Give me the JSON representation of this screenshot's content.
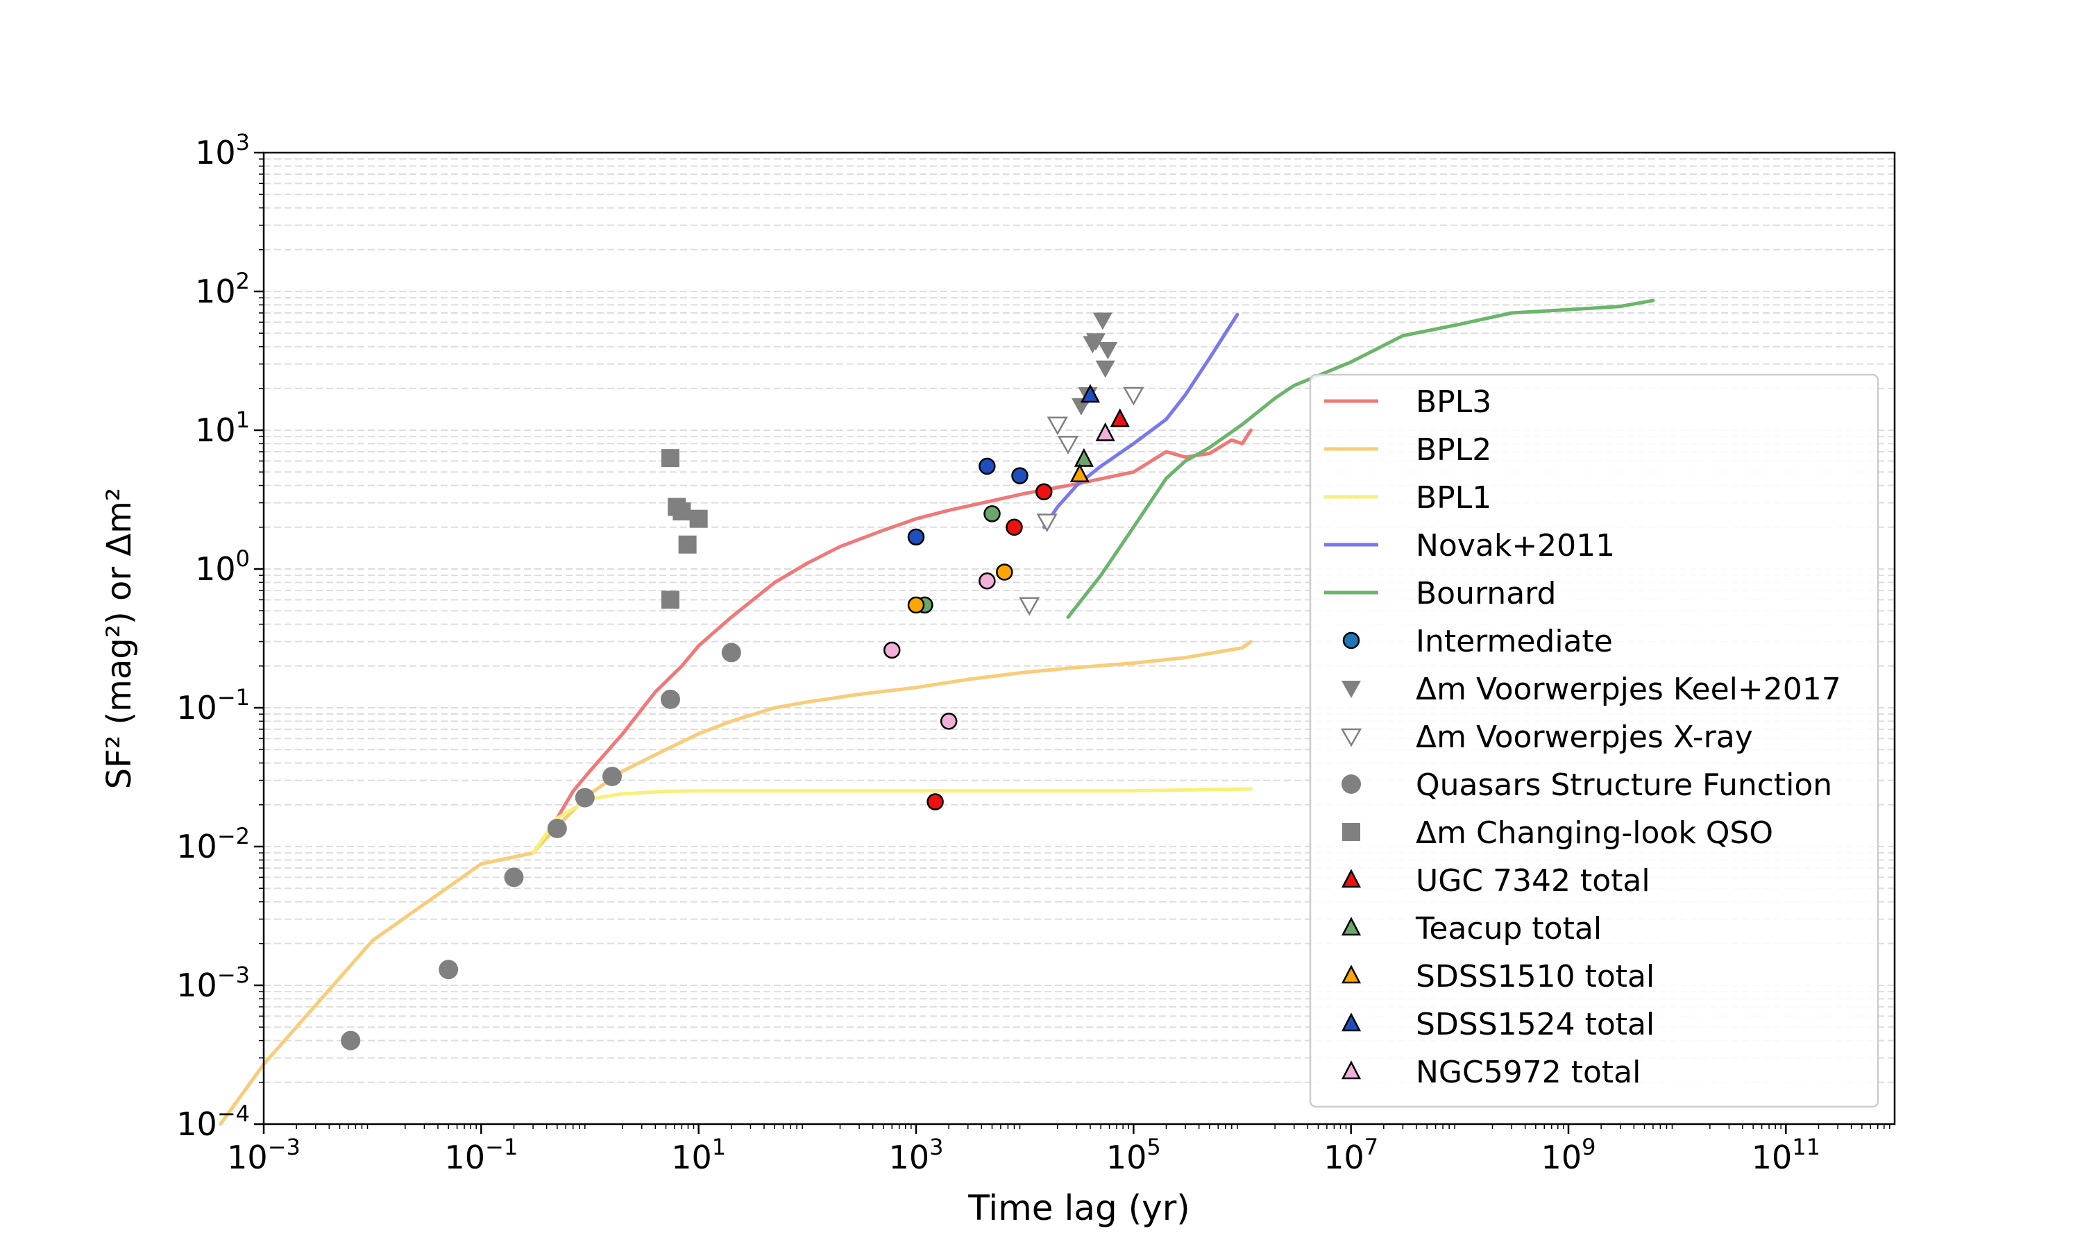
{
  "chart_data": {
    "type": "scatter",
    "xlabel": "Time lag (yr)",
    "ylabel": "SF² (mag²) or Δm²",
    "xscale": "log",
    "yscale": "log",
    "xlim": [
      0.001,
      1000000000000.0
    ],
    "ylim": [
      0.0001,
      1000
    ],
    "grid": "y-minor dashed",
    "x_ticks": [
      {
        "value": 0.001,
        "base": "10",
        "exp": "−3"
      },
      {
        "value": 0.1,
        "base": "10",
        "exp": "−1"
      },
      {
        "value": 10,
        "base": "10",
        "exp": "1"
      },
      {
        "value": 1000,
        "base": "10",
        "exp": "3"
      },
      {
        "value": 100000,
        "base": "10",
        "exp": "5"
      },
      {
        "value": 10000000,
        "base": "10",
        "exp": "7"
      },
      {
        "value": 1000000000,
        "base": "10",
        "exp": "9"
      },
      {
        "value": 100000000000,
        "base": "10",
        "exp": "11"
      }
    ],
    "y_ticks": [
      {
        "value": 0.0001,
        "base": "10",
        "exp": "−4"
      },
      {
        "value": 0.001,
        "base": "10",
        "exp": "−3"
      },
      {
        "value": 0.01,
        "base": "10",
        "exp": "−2"
      },
      {
        "value": 0.1,
        "base": "10",
        "exp": "−1"
      },
      {
        "value": 1,
        "base": "10",
        "exp": "0"
      },
      {
        "value": 10,
        "base": "10",
        "exp": "1"
      },
      {
        "value": 100,
        "base": "10",
        "exp": "2"
      },
      {
        "value": 1000,
        "base": "10",
        "exp": "3"
      }
    ],
    "legend_position": "right, upper-middle",
    "lines": [
      {
        "name": "BPL3",
        "color": "#f07878",
        "points": [
          [
            0.3,
            0.009
          ],
          [
            0.4,
            0.012
          ],
          [
            0.5,
            0.016
          ],
          [
            0.7,
            0.025
          ],
          [
            1,
            0.035
          ],
          [
            2,
            0.065
          ],
          [
            4,
            0.13
          ],
          [
            7,
            0.2
          ],
          [
            10,
            0.28
          ],
          [
            20,
            0.45
          ],
          [
            50,
            0.8
          ],
          [
            100,
            1.1
          ],
          [
            200,
            1.45
          ],
          [
            500,
            1.9
          ],
          [
            1000,
            2.3
          ],
          [
            2000,
            2.65
          ],
          [
            5000,
            3.1
          ],
          [
            10000,
            3.5
          ],
          [
            30000,
            4.1
          ],
          [
            100000,
            5.0
          ],
          [
            200000,
            7.0
          ],
          [
            300000,
            6.4
          ],
          [
            500000,
            6.8
          ],
          [
            800000,
            8.5
          ],
          [
            1000000,
            8.0
          ],
          [
            1200000,
            10.0
          ]
        ]
      },
      {
        "name": "BPL2",
        "color": "#f8cc78",
        "points": [
          [
            0.0004,
            0.0001
          ],
          [
            0.001,
            0.00027
          ],
          [
            0.01,
            0.0021
          ],
          [
            0.1,
            0.0075
          ],
          [
            0.3,
            0.009
          ],
          [
            0.5,
            0.014
          ],
          [
            1,
            0.024
          ],
          [
            2,
            0.035
          ],
          [
            5,
            0.05
          ],
          [
            10,
            0.065
          ],
          [
            20,
            0.08
          ],
          [
            50,
            0.1
          ],
          [
            100,
            0.11
          ],
          [
            300,
            0.125
          ],
          [
            1000,
            0.14
          ],
          [
            3000,
            0.16
          ],
          [
            10000,
            0.18
          ],
          [
            30000,
            0.195
          ],
          [
            100000,
            0.21
          ],
          [
            300000,
            0.23
          ],
          [
            1000000,
            0.27
          ],
          [
            1200000,
            0.3
          ]
        ]
      },
      {
        "name": "BPL1",
        "color": "#f8f078",
        "points": [
          [
            0.3,
            0.009
          ],
          [
            0.5,
            0.016
          ],
          [
            1,
            0.022
          ],
          [
            2,
            0.024
          ],
          [
            5,
            0.025
          ],
          [
            10,
            0.0252
          ],
          [
            100,
            0.0252
          ],
          [
            1000,
            0.0252
          ],
          [
            10000,
            0.0252
          ],
          [
            100000,
            0.0252
          ],
          [
            1200000,
            0.026
          ]
        ]
      },
      {
        "name": "Novak+2011",
        "color": "#7878f0",
        "points": [
          [
            15000,
            2.0
          ],
          [
            20000,
            2.8
          ],
          [
            30000,
            4.0
          ],
          [
            50000,
            5.5
          ],
          [
            100000,
            8.0
          ],
          [
            200000,
            12.0
          ],
          [
            300000,
            18.0
          ],
          [
            500000,
            33.0
          ],
          [
            900000,
            68.0
          ]
        ]
      },
      {
        "name": "Bournard",
        "color": "#6ab56a",
        "points": [
          [
            25000,
            0.45
          ],
          [
            50000,
            0.9
          ],
          [
            100000,
            2.0
          ],
          [
            200000,
            4.5
          ],
          [
            300000,
            6.0
          ],
          [
            500000,
            7.5
          ],
          [
            1000000,
            11.0
          ],
          [
            2000000,
            17.0
          ],
          [
            3000000,
            21.0
          ],
          [
            10000000,
            31.0
          ],
          [
            30000000,
            48.0
          ],
          [
            100000000,
            58.0
          ],
          [
            300000000,
            70.0
          ],
          [
            1000000000,
            74.0
          ],
          [
            3000000000,
            78.0
          ],
          [
            6000000000,
            86.0
          ]
        ]
      }
    ],
    "series": [
      {
        "name": "Intermediate",
        "marker": "circle",
        "color": "#1f77b4",
        "points": []
      },
      {
        "name": "Δm Voorwerpjes Keel+2017",
        "marker": "triangle-down",
        "color": "#808080",
        "points": [
          [
            33000,
            15
          ],
          [
            38000,
            18
          ],
          [
            42000,
            42
          ],
          [
            45000,
            44
          ],
          [
            52000,
            62
          ],
          [
            55000,
            28
          ],
          [
            58000,
            38
          ]
        ]
      },
      {
        "name": "Δm Voorwerpjes X-ray",
        "marker": "triangle-down-open",
        "color": "#808080",
        "points": [
          [
            20000,
            11
          ],
          [
            25000,
            8
          ],
          [
            11000,
            0.55
          ],
          [
            16000,
            2.2
          ],
          [
            100000,
            18
          ]
        ]
      },
      {
        "name": "Quasars Structure Function",
        "marker": "circle",
        "color": "#808080",
        "points": [
          [
            0.0063,
            0.0004
          ],
          [
            0.05,
            0.0013
          ],
          [
            0.2,
            0.006
          ],
          [
            0.5,
            0.0135
          ],
          [
            0.9,
            0.0225
          ],
          [
            1.6,
            0.032
          ],
          [
            5.5,
            0.115
          ],
          [
            20,
            0.25
          ]
        ]
      },
      {
        "name": "Δm Changing-look QSO",
        "marker": "square",
        "color": "#808080",
        "points": [
          [
            5.5,
            6.3
          ],
          [
            6.3,
            2.8
          ],
          [
            7,
            2.6
          ],
          [
            7.9,
            1.5
          ],
          [
            10,
            2.3
          ],
          [
            5.5,
            0.6
          ]
        ]
      },
      {
        "name": "UGC 7342 total",
        "marker": "triangle-up",
        "color": "#ee1111",
        "points": [
          [
            75000,
            12
          ]
        ]
      },
      {
        "name": "Teacup total",
        "marker": "triangle-up",
        "color": "#6aa86a",
        "points": [
          [
            35000,
            6.2
          ]
        ]
      },
      {
        "name": "SDSS1510 total",
        "marker": "triangle-up",
        "color": "#ffa500",
        "points": [
          [
            32000,
            4.8
          ]
        ]
      },
      {
        "name": "SDSS1524 total",
        "marker": "triangle-up",
        "color": "#1f4fbf",
        "points": [
          [
            40000,
            18
          ]
        ]
      },
      {
        "name": "NGC5972 total",
        "marker": "triangle-up",
        "color": "#f0b0d8",
        "points": [
          [
            55000,
            9.5
          ]
        ]
      },
      {
        "name": "UGC 7342 object points",
        "marker": "circle",
        "color": "#ee1111",
        "in_legend": false,
        "points": [
          [
            1500,
            0.021
          ],
          [
            8000,
            2.0
          ],
          [
            15000,
            3.6
          ]
        ]
      },
      {
        "name": "Teacup object points",
        "marker": "circle",
        "color": "#6aa86a",
        "in_legend": false,
        "points": [
          [
            1200,
            0.55
          ],
          [
            5000,
            2.5
          ]
        ]
      },
      {
        "name": "SDSS1510 object points",
        "marker": "circle",
        "color": "#ffa500",
        "in_legend": false,
        "points": [
          [
            1000,
            0.55
          ],
          [
            6500,
            0.95
          ]
        ]
      },
      {
        "name": "SDSS1524 object points",
        "marker": "circle",
        "color": "#1f4fbf",
        "in_legend": false,
        "points": [
          [
            1000,
            1.7
          ],
          [
            4500,
            5.5
          ],
          [
            9000,
            4.7
          ]
        ]
      },
      {
        "name": "NGC5972 object points",
        "marker": "circle",
        "color": "#f0b0d8",
        "in_legend": false,
        "points": [
          [
            600,
            0.26
          ],
          [
            2000,
            0.08
          ],
          [
            4500,
            0.82
          ]
        ]
      }
    ],
    "legend": [
      {
        "label": "BPL3",
        "kind": "line",
        "color": "#f07878"
      },
      {
        "label": "BPL2",
        "kind": "line",
        "color": "#f8cc78"
      },
      {
        "label": "BPL1",
        "kind": "line",
        "color": "#f8f078"
      },
      {
        "label": "Novak+2011",
        "kind": "line",
        "color": "#7878f0"
      },
      {
        "label": "Bournard",
        "kind": "line",
        "color": "#6ab56a"
      },
      {
        "label": "Intermediate",
        "kind": "circle",
        "color": "#1f77b4"
      },
      {
        "label": "Δm Voorwerpjes Keel+2017",
        "kind": "triangle-down",
        "color": "#808080"
      },
      {
        "label": "Δm Voorwerpjes X-ray",
        "kind": "triangle-down-open",
        "color": "#808080"
      },
      {
        "label": "Quasars Structure Function",
        "kind": "circle",
        "color": "#808080"
      },
      {
        "label": "Δm Changing-look QSO",
        "kind": "square",
        "color": "#808080"
      },
      {
        "label": "UGC 7342 total",
        "kind": "triangle-up",
        "color": "#ee1111"
      },
      {
        "label": "Teacup total",
        "kind": "triangle-up",
        "color": "#6aa86a"
      },
      {
        "label": "SDSS1510 total",
        "kind": "triangle-up",
        "color": "#ffa500"
      },
      {
        "label": "SDSS1524 total",
        "kind": "triangle-up",
        "color": "#1f4fbf"
      },
      {
        "label": "NGC5972 total",
        "kind": "triangle-up",
        "color": "#f0b0d8"
      }
    ]
  }
}
